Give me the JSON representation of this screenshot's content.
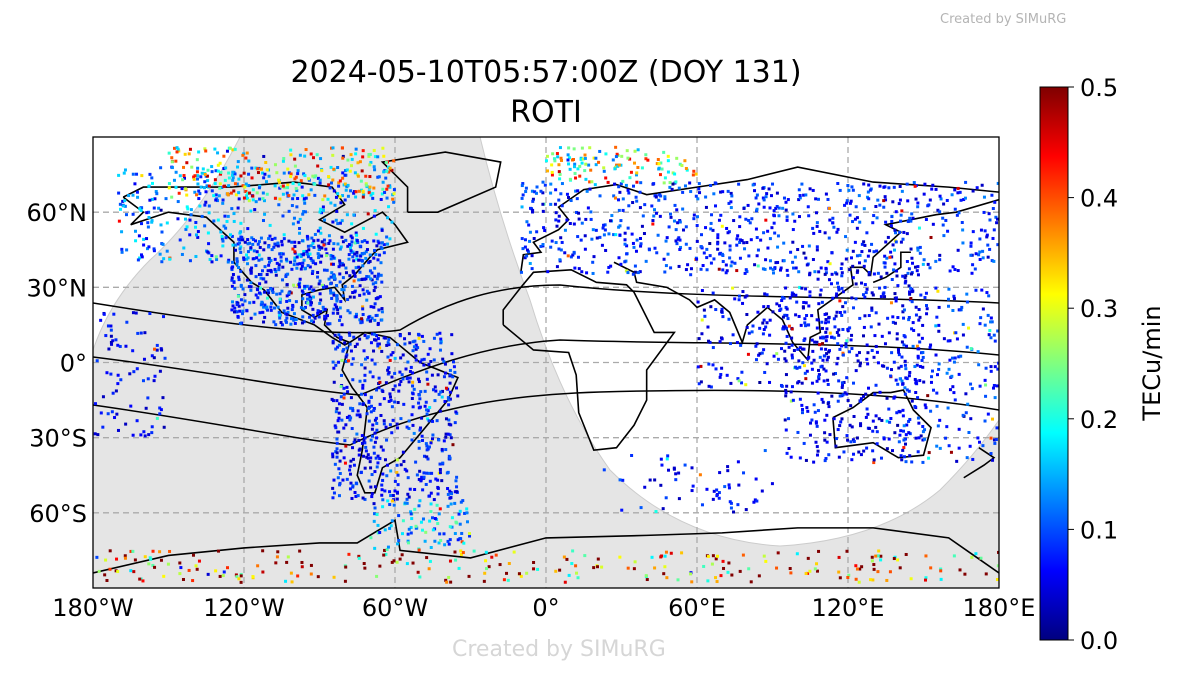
{
  "watermark_top": "Created by SIMuRG",
  "watermark_bottom": "Created by SIMuRG",
  "chart_data": {
    "type": "scatter",
    "title": "2024-05-10T05:57:00Z (DOY 131)",
    "subtitle": "ROTI",
    "projection": "plate carree world map with coastlines, night-side shading, magnetic equator lines",
    "xlim": [
      -180,
      180
    ],
    "ylim": [
      -90,
      90
    ],
    "x_ticks": [
      "180°W",
      "120°W",
      "60°W",
      "0°",
      "60°E",
      "120°E",
      "180°E"
    ],
    "y_ticks": [
      "60°N",
      "30°N",
      "0°",
      "30°S",
      "60°S"
    ],
    "grid": true,
    "colorbar": {
      "label": "TECu/min",
      "range": [
        0,
        0.5
      ],
      "ticks": [
        "0.0",
        "0.1",
        "0.2",
        "0.3",
        "0.4",
        "0.5"
      ],
      "colormap": "jet"
    },
    "night_shade_color": "#e5e5e5"
  }
}
